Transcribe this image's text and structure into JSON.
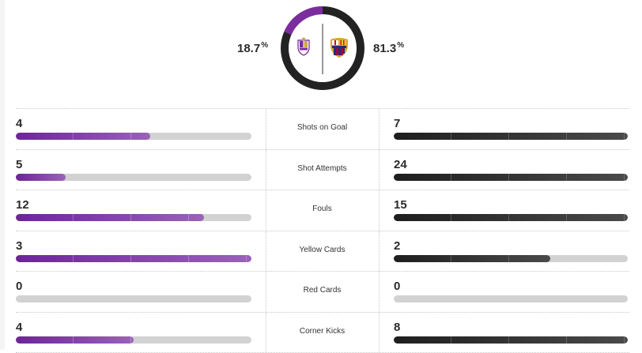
{
  "colors": {
    "home": "#7b2d9f",
    "away": "#2a2a2a",
    "track": "#d2d2d2"
  },
  "possession": {
    "home_value": "18.7",
    "away_value": "81.3",
    "unit": "%",
    "home_fraction": 0.187,
    "home_crest_icon": "valladolid-crest-icon",
    "away_crest_icon": "barcelona-crest-icon"
  },
  "stats": [
    {
      "label": "Shots on Goal",
      "home": "4",
      "away": "7",
      "home_fill": 0.57,
      "away_fill": 1.0
    },
    {
      "label": "Shot Attempts",
      "home": "5",
      "away": "24",
      "home_fill": 0.21,
      "away_fill": 1.0
    },
    {
      "label": "Fouls",
      "home": "12",
      "away": "15",
      "home_fill": 0.8,
      "away_fill": 1.0
    },
    {
      "label": "Yellow Cards",
      "home": "3",
      "away": "2",
      "home_fill": 1.0,
      "away_fill": 0.67
    },
    {
      "label": "Red Cards",
      "home": "0",
      "away": "0",
      "home_fill": 0.0,
      "away_fill": 0.0
    },
    {
      "label": "Corner Kicks",
      "home": "4",
      "away": "8",
      "home_fill": 0.5,
      "away_fill": 1.0
    }
  ]
}
